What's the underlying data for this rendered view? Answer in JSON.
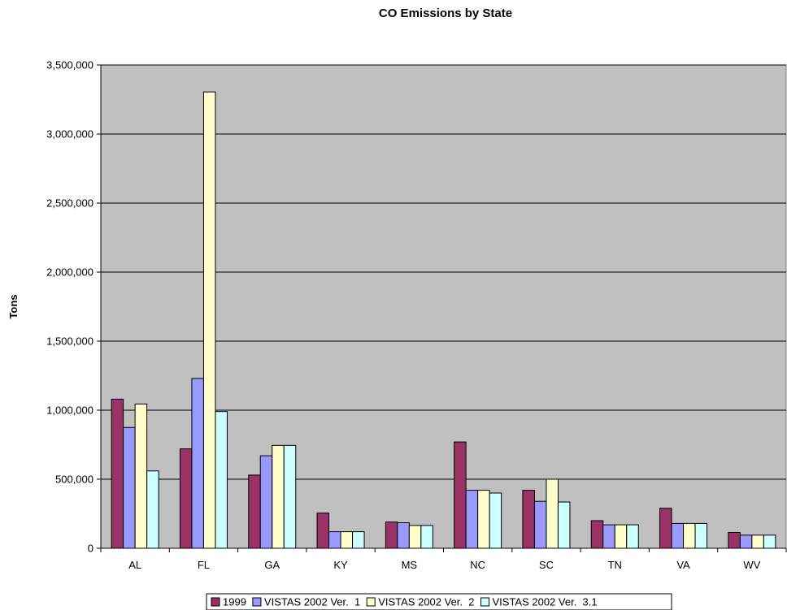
{
  "chart_data": {
    "type": "bar",
    "title": "CO Emissions by State",
    "xlabel": "",
    "ylabel": "Tons",
    "ylim": [
      0,
      3500000
    ],
    "yticks": [
      0,
      500000,
      1000000,
      1500000,
      2000000,
      2500000,
      3000000,
      3500000
    ],
    "ytick_labels": [
      "0",
      "500,000",
      "1,000,000",
      "1,500,000",
      "2,000,000",
      "2,500,000",
      "3,000,000",
      "3,500,000"
    ],
    "grid": true,
    "legend_position": "bottom",
    "plot_background": "#C0C0C0",
    "categories": [
      "AL",
      "FL",
      "GA",
      "KY",
      "MS",
      "NC",
      "SC",
      "TN",
      "VA",
      "WV"
    ],
    "series": [
      {
        "name": "1999",
        "color": "#993366",
        "values": [
          1080000,
          720000,
          530000,
          255000,
          190000,
          770000,
          420000,
          200000,
          290000,
          115000
        ]
      },
      {
        "name": "VISTAS 2002 Ver.  1",
        "color": "#9999FF",
        "values": [
          875000,
          1230000,
          670000,
          120000,
          185000,
          420000,
          340000,
          170000,
          180000,
          95000
        ]
      },
      {
        "name": "VISTAS 2002 Ver.  2",
        "color": "#FFFFCC",
        "values": [
          1045000,
          3305000,
          745000,
          120000,
          165000,
          420000,
          500000,
          170000,
          180000,
          95000
        ]
      },
      {
        "name": "VISTAS 2002 Ver.  3.1",
        "color": "#CCFFFF",
        "values": [
          560000,
          990000,
          745000,
          120000,
          165000,
          400000,
          335000,
          170000,
          180000,
          95000
        ]
      }
    ]
  }
}
